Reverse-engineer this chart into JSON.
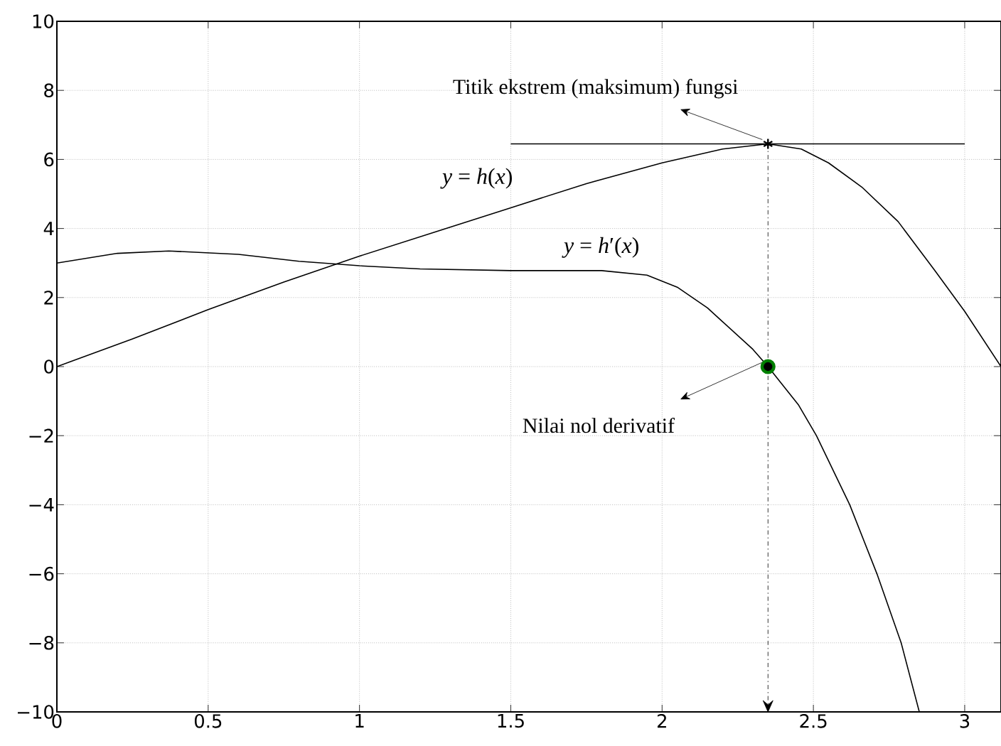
{
  "chart_data": {
    "type": "line",
    "xlim": [
      0,
      3.12
    ],
    "ylim": [
      -10,
      10
    ],
    "xticks": [
      0,
      0.5,
      1,
      1.5,
      2,
      2.5,
      3
    ],
    "yticks": [
      {
        "value": -10,
        "label": "−10"
      },
      {
        "value": -8,
        "label": "−8"
      },
      {
        "value": -6,
        "label": "−6"
      },
      {
        "value": -4,
        "label": "−4"
      },
      {
        "value": -2,
        "label": "−2"
      },
      0,
      2,
      4,
      6,
      8,
      10
    ],
    "grid": true,
    "series": [
      {
        "name": "*y* = *h*(*x*)",
        "color": "#000000",
        "x": [
          0,
          0.25,
          0.5,
          0.75,
          1.0,
          1.25,
          1.5,
          1.75,
          2.0,
          2.2,
          2.35,
          2.46,
          2.55,
          2.66,
          2.78,
          2.9,
          3.0,
          3.12
        ],
        "values": [
          0,
          0.8,
          1.65,
          2.45,
          3.2,
          3.9,
          4.6,
          5.3,
          5.9,
          6.3,
          6.45,
          6.3,
          5.9,
          5.2,
          4.2,
          2.8,
          1.6,
          0.0
        ]
      },
      {
        "name": "*y* = *h*′(*x*)",
        "color": "#000000",
        "x": [
          0,
          0.2,
          0.37,
          0.6,
          0.8,
          1.0,
          1.2,
          1.5,
          1.8,
          1.95,
          2.05,
          2.15,
          2.2,
          2.3,
          2.35,
          2.45,
          2.51,
          2.62,
          2.71,
          2.79,
          2.85
        ],
        "values": [
          3.0,
          3.28,
          3.35,
          3.25,
          3.05,
          2.92,
          2.83,
          2.78,
          2.78,
          2.65,
          2.3,
          1.7,
          1.3,
          0.5,
          0,
          -1.1,
          -2.0,
          -4.0,
          -6.0,
          -8.0,
          -10
        ]
      },
      {
        "color": "#000000",
        "x": [
          1.5,
          3.0
        ],
        "values": [
          6.45,
          6.45
        ]
      },
      {
        "color": "#000000",
        "line_style": "dashed",
        "x": [
          2.35,
          2.35
        ],
        "values": [
          6.45,
          -10
        ]
      },
      {
        "type": "scatter",
        "marker": "cross",
        "color": "#000000",
        "x": [
          2.35
        ],
        "values": [
          6.45
        ]
      },
      {
        "type": "scatter",
        "marker": "circle",
        "color": "#008000",
        "x": [
          2.35
        ],
        "values": [
          0
        ]
      }
    ],
    "annotations": [
      {
        "text": "Titik ekstrem (maksimum) fungsi",
        "x": 2.35,
        "y": 6.45
      },
      {
        "text": "Nilai nol derivatif",
        "x": 2.35,
        "y": 0
      }
    ]
  }
}
